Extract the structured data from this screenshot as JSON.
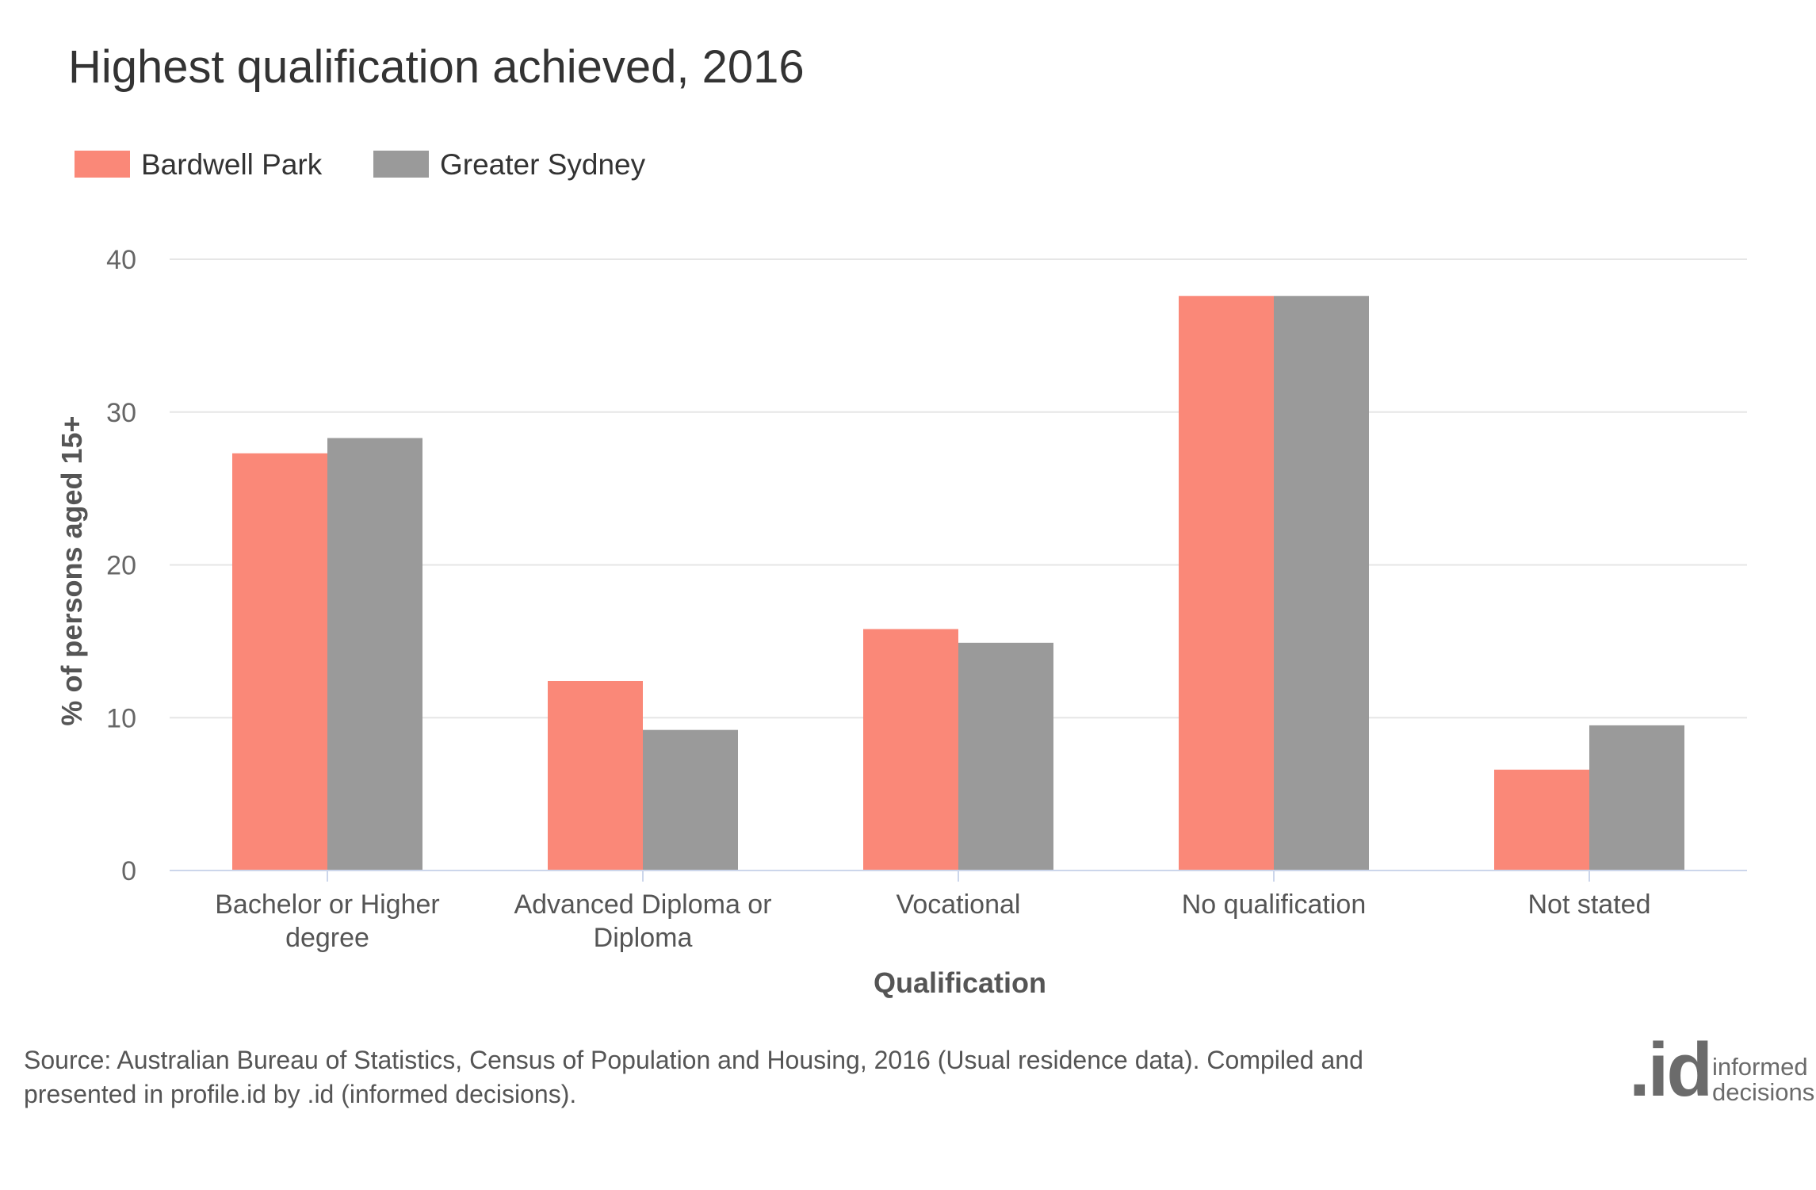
{
  "chart_data": {
    "type": "bar",
    "title": "Highest qualification achieved, 2016",
    "categories": [
      [
        "Bachelor or Higher",
        "degree"
      ],
      [
        "Advanced Diploma or",
        "Diploma"
      ],
      [
        "Vocational"
      ],
      [
        "No qualification"
      ],
      [
        "Not stated"
      ]
    ],
    "series": [
      {
        "name": "Bardwell Park",
        "color": "#fa8878",
        "values": [
          27.3,
          12.4,
          15.8,
          37.6,
          6.6
        ]
      },
      {
        "name": "Greater Sydney",
        "color": "#9a9a9a",
        "values": [
          28.3,
          9.2,
          14.9,
          37.6,
          9.5
        ]
      }
    ],
    "xlabel": "Qualification",
    "ylabel": "% of persons aged 15+",
    "ylim": [
      0,
      40
    ],
    "yticks": [
      0,
      10,
      20,
      30,
      40
    ],
    "grid": true,
    "legend_position": "top-left"
  },
  "source_line1": "Source: Australian Bureau of Statistics, Census of Population and Housing, 2016 (Usual residence data). Compiled and",
  "source_line2": "presented in profile.id by .id (informed decisions).",
  "logo": {
    "mark": ".id",
    "line1": "informed",
    "line2": "decisions"
  },
  "colors": {
    "grid": "#e6e6e6",
    "axis": "#ccd6eb",
    "text": "#333333"
  }
}
